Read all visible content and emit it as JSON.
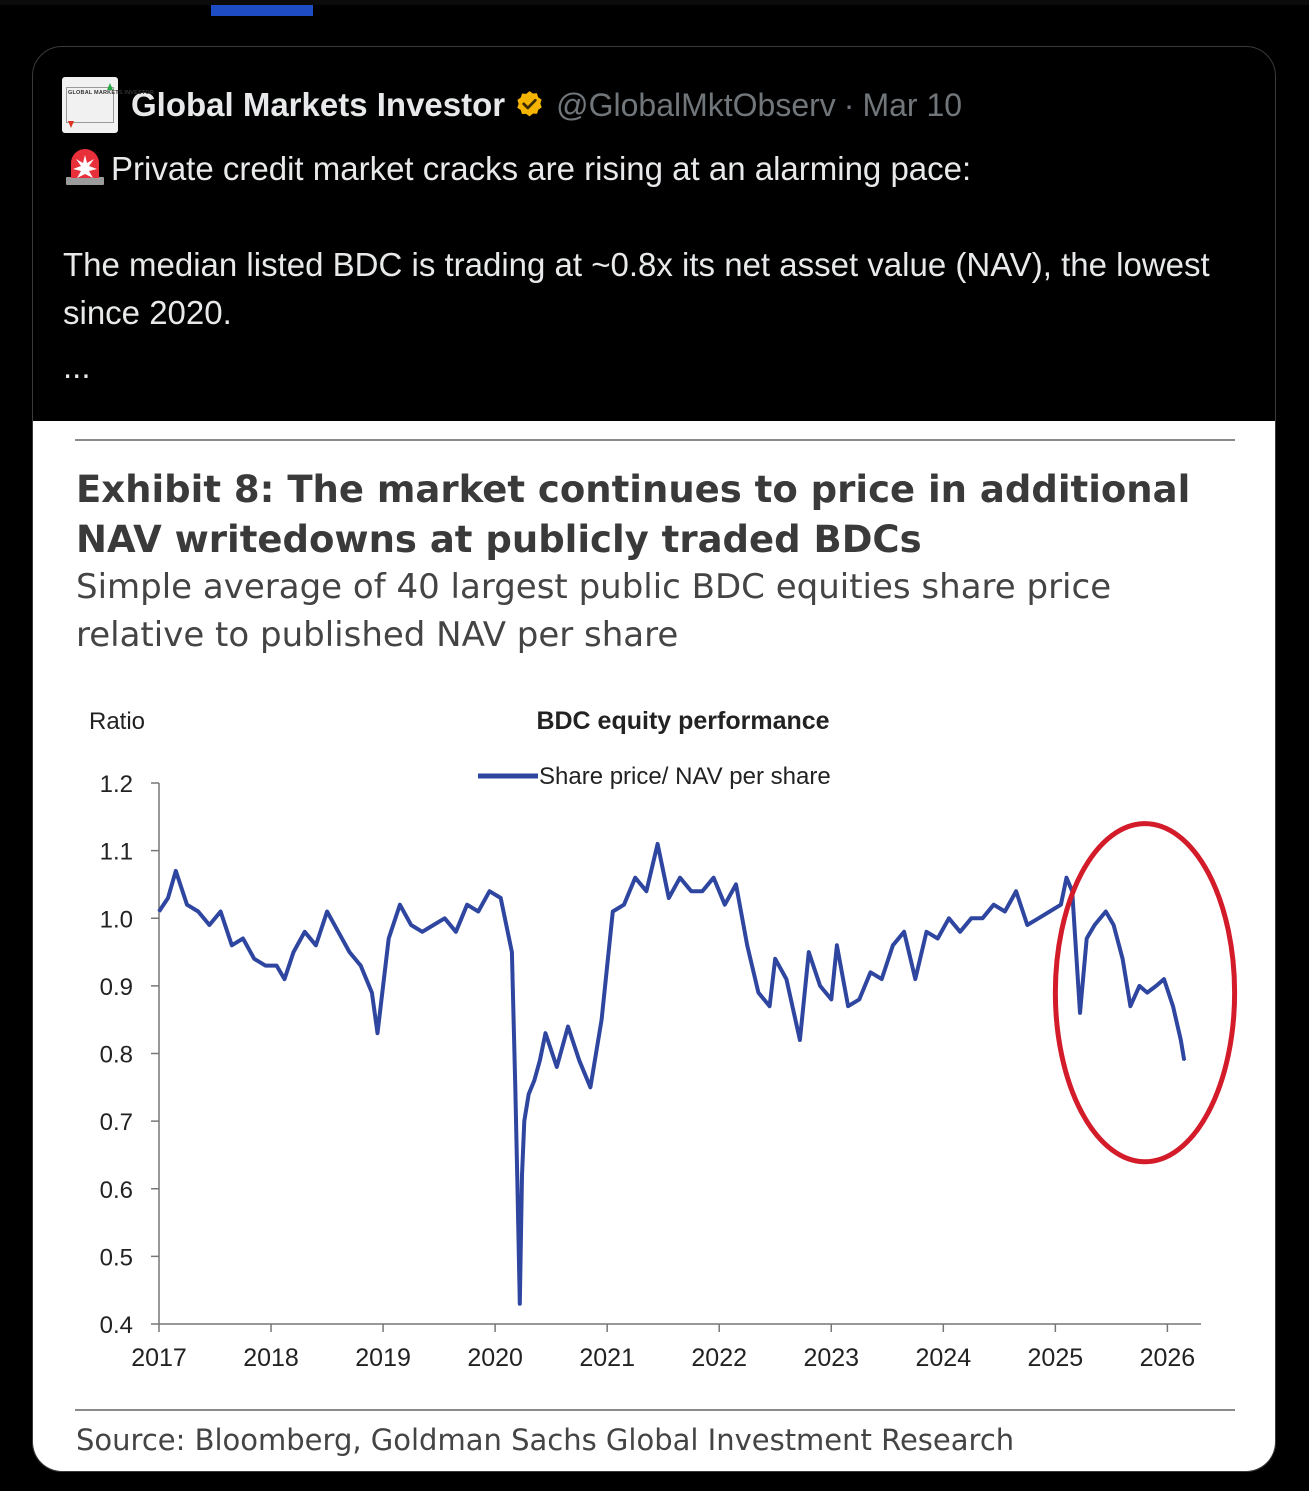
{
  "tweet": {
    "author_name": "Global Markets Investor",
    "handle": "@GlobalMktObserv",
    "separator": "·",
    "date": "Mar 10",
    "avatar_text": "GLOBAL MARKETS INVESTOR",
    "verified_icon": "verified-badge-icon",
    "text_line1": "Private credit market cracks are rising at an alarming pace:",
    "text_line2": "The median listed BDC is trading at ~0.8x its net asset value (NAV), the lowest since 2020.",
    "ellipsis": "...",
    "emoji_icon": "siren-icon",
    "colors": {
      "text": "#e7e9ea",
      "muted": "#71767b",
      "badge": "#f4b400",
      "accent_tab": "#1d4cc4"
    }
  },
  "exhibit": {
    "title": "Exhibit 8: The market continues to price in additional NAV writedowns at publicly traded BDCs",
    "subtitle": "Simple average of 40 largest public BDC equities share price relative to published NAV per share",
    "source": "Source: Bloomberg, Goldman Sachs Global Investment Research"
  },
  "chart_data": {
    "type": "line",
    "title": "BDC equity performance",
    "ylabel": "Ratio",
    "xlabel": "",
    "legend_position": "top-center",
    "grid": false,
    "ylim": [
      0.4,
      1.2
    ],
    "xlim": [
      2017.0,
      2026.3
    ],
    "yticks": [
      "1.2",
      "1.1",
      "1.0",
      "0.9",
      "0.8",
      "0.7",
      "0.6",
      "0.5",
      "0.4"
    ],
    "xticks": [
      "2017",
      "2018",
      "2019",
      "2020",
      "2021",
      "2022",
      "2023",
      "2024",
      "2025",
      "2026"
    ],
    "series": [
      {
        "name": "Share price/ NAV per share",
        "color": "#2f46a0",
        "x": [
          2017.0,
          2017.08,
          2017.15,
          2017.25,
          2017.35,
          2017.45,
          2017.55,
          2017.65,
          2017.75,
          2017.85,
          2017.95,
          2018.05,
          2018.12,
          2018.2,
          2018.3,
          2018.4,
          2018.5,
          2018.6,
          2018.7,
          2018.8,
          2018.9,
          2018.95,
          2019.05,
          2019.15,
          2019.25,
          2019.35,
          2019.45,
          2019.55,
          2019.65,
          2019.75,
          2019.85,
          2019.95,
          2020.05,
          2020.15,
          2020.18,
          2020.2,
          2020.22,
          2020.24,
          2020.26,
          2020.3,
          2020.35,
          2020.4,
          2020.45,
          2020.55,
          2020.65,
          2020.75,
          2020.85,
          2020.95,
          2021.05,
          2021.15,
          2021.25,
          2021.35,
          2021.45,
          2021.55,
          2021.65,
          2021.75,
          2021.85,
          2021.95,
          2022.05,
          2022.15,
          2022.25,
          2022.35,
          2022.45,
          2022.5,
          2022.6,
          2022.72,
          2022.8,
          2022.9,
          2023.0,
          2023.05,
          2023.15,
          2023.25,
          2023.35,
          2023.45,
          2023.55,
          2023.65,
          2023.75,
          2023.85,
          2023.95,
          2024.05,
          2024.15,
          2024.25,
          2024.35,
          2024.45,
          2024.55,
          2024.65,
          2024.75,
          2024.85,
          2024.95,
          2025.05,
          2025.1,
          2025.15,
          2025.22,
          2025.28,
          2025.35,
          2025.45,
          2025.52,
          2025.6,
          2025.67,
          2025.75,
          2025.82,
          2025.9,
          2025.97,
          2026.05,
          2026.12,
          2026.15
        ],
        "y": [
          1.01,
          1.03,
          1.07,
          1.02,
          1.01,
          0.99,
          1.01,
          0.96,
          0.97,
          0.94,
          0.93,
          0.93,
          0.91,
          0.95,
          0.98,
          0.96,
          1.01,
          0.98,
          0.95,
          0.93,
          0.89,
          0.83,
          0.97,
          1.02,
          0.99,
          0.98,
          0.99,
          1.0,
          0.98,
          1.02,
          1.01,
          1.04,
          1.03,
          0.95,
          0.75,
          0.6,
          0.43,
          0.62,
          0.7,
          0.74,
          0.76,
          0.79,
          0.83,
          0.78,
          0.84,
          0.79,
          0.75,
          0.85,
          1.01,
          1.02,
          1.06,
          1.04,
          1.11,
          1.03,
          1.06,
          1.04,
          1.04,
          1.06,
          1.02,
          1.05,
          0.96,
          0.89,
          0.87,
          0.94,
          0.91,
          0.82,
          0.95,
          0.9,
          0.88,
          0.96,
          0.87,
          0.88,
          0.92,
          0.91,
          0.96,
          0.98,
          0.91,
          0.98,
          0.97,
          1.0,
          0.98,
          1.0,
          1.0,
          1.02,
          1.01,
          1.04,
          0.99,
          1.0,
          1.01,
          1.02,
          1.06,
          1.04,
          0.86,
          0.97,
          0.99,
          1.01,
          0.99,
          0.94,
          0.87,
          0.9,
          0.89,
          0.9,
          0.91,
          0.87,
          0.82,
          0.79
        ]
      }
    ],
    "annotation": {
      "shape": "ellipse",
      "color": "#d31b2a",
      "x_range": [
        2025.0,
        2026.6
      ],
      "y_range": [
        0.64,
        1.14
      ]
    }
  }
}
